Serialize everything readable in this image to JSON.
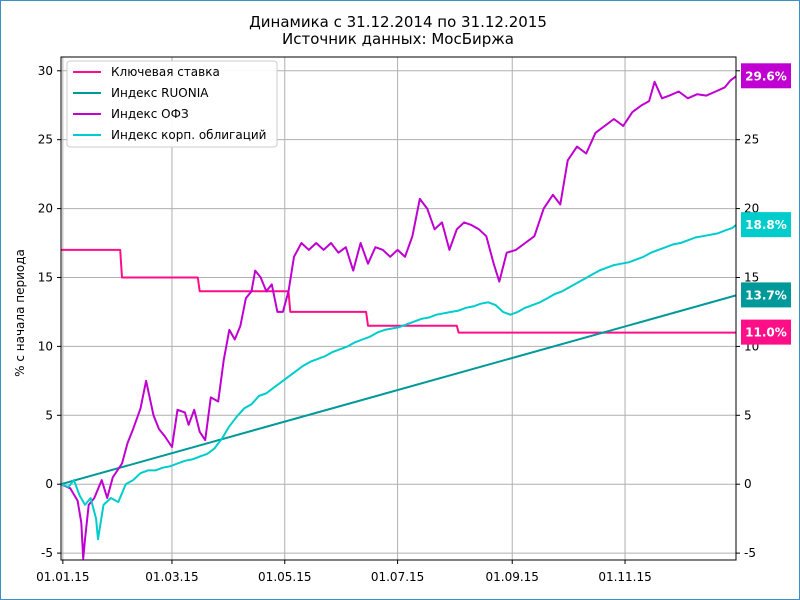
{
  "chart_data": {
    "type": "line",
    "title": "Динамика с 31.12.2014 по 31.12.2015",
    "subtitle": "Источник данных: МосБиржа",
    "ylabel": "% с начала периода",
    "xlabel": "",
    "ylim": [
      -5.5,
      31.0
    ],
    "xlim": [
      "2014-12-31",
      "2015-12-31"
    ],
    "yticks": [
      -5,
      0,
      5,
      10,
      15,
      20,
      25,
      30
    ],
    "xticks": [
      {
        "date": "2015-01-01",
        "label": "01.01.15"
      },
      {
        "date": "2015-03-01",
        "label": "01.03.15"
      },
      {
        "date": "2015-05-01",
        "label": "01.05.15"
      },
      {
        "date": "2015-07-01",
        "label": "01.07.15"
      },
      {
        "date": "2015-09-01",
        "label": "01.09.15"
      },
      {
        "date": "2015-11-01",
        "label": "01.11.15"
      }
    ],
    "grid": true,
    "legend": "top-left",
    "series": [
      {
        "name": "Ключевая ставка",
        "color": "#ff0f87",
        "end_label": "11.0%",
        "points": [
          [
            "2014-12-31",
            17.0
          ],
          [
            "2015-02-01",
            17.0
          ],
          [
            "2015-02-02",
            15.0
          ],
          [
            "2015-03-15",
            15.0
          ],
          [
            "2015-03-16",
            14.0
          ],
          [
            "2015-05-03",
            14.0
          ],
          [
            "2015-05-04",
            12.5
          ],
          [
            "2015-06-14",
            12.5
          ],
          [
            "2015-06-15",
            11.5
          ],
          [
            "2015-08-02",
            11.5
          ],
          [
            "2015-08-03",
            11.0
          ],
          [
            "2015-12-31",
            11.0
          ]
        ]
      },
      {
        "name": "Индекс RUONIA",
        "color": "#009999",
        "end_label": "13.7%",
        "points": [
          [
            "2014-12-31",
            0.0
          ],
          [
            "2015-12-31",
            13.7
          ]
        ]
      },
      {
        "name": "Индекс ОФЗ",
        "color": "#c000d0",
        "end_label": "29.6%",
        "points": [
          [
            "2014-12-31",
            0.0
          ],
          [
            "2015-01-05",
            -0.3
          ],
          [
            "2015-01-09",
            -1.2
          ],
          [
            "2015-01-11",
            -2.8
          ],
          [
            "2015-01-12",
            -5.4
          ],
          [
            "2015-01-13",
            -4.0
          ],
          [
            "2015-01-15",
            -1.5
          ],
          [
            "2015-01-18",
            -1.0
          ],
          [
            "2015-01-22",
            0.3
          ],
          [
            "2015-01-25",
            -1.0
          ],
          [
            "2015-01-28",
            0.5
          ],
          [
            "2015-02-02",
            1.5
          ],
          [
            "2015-02-05",
            3.0
          ],
          [
            "2015-02-08",
            4.0
          ],
          [
            "2015-02-12",
            5.5
          ],
          [
            "2015-02-15",
            7.5
          ],
          [
            "2015-02-19",
            5.0
          ],
          [
            "2015-02-22",
            4.0
          ],
          [
            "2015-02-25",
            3.5
          ],
          [
            "2015-03-01",
            2.7
          ],
          [
            "2015-03-04",
            5.4
          ],
          [
            "2015-03-08",
            5.2
          ],
          [
            "2015-03-10",
            4.3
          ],
          [
            "2015-03-13",
            5.4
          ],
          [
            "2015-03-16",
            3.8
          ],
          [
            "2015-03-19",
            3.2
          ],
          [
            "2015-03-22",
            6.3
          ],
          [
            "2015-03-26",
            6.0
          ],
          [
            "2015-03-29",
            9.0
          ],
          [
            "2015-04-01",
            11.2
          ],
          [
            "2015-04-04",
            10.5
          ],
          [
            "2015-04-07",
            11.5
          ],
          [
            "2015-04-10",
            13.5
          ],
          [
            "2015-04-13",
            14.0
          ],
          [
            "2015-04-15",
            15.5
          ],
          [
            "2015-04-18",
            15.0
          ],
          [
            "2015-04-21",
            14.0
          ],
          [
            "2015-04-24",
            14.5
          ],
          [
            "2015-04-27",
            12.5
          ],
          [
            "2015-04-30",
            12.5
          ],
          [
            "2015-05-03",
            14.0
          ],
          [
            "2015-05-06",
            16.5
          ],
          [
            "2015-05-10",
            17.5
          ],
          [
            "2015-05-14",
            17.0
          ],
          [
            "2015-05-18",
            17.5
          ],
          [
            "2015-05-22",
            17.0
          ],
          [
            "2015-05-26",
            17.5
          ],
          [
            "2015-05-30",
            16.8
          ],
          [
            "2015-06-03",
            17.2
          ],
          [
            "2015-06-07",
            15.5
          ],
          [
            "2015-06-11",
            17.5
          ],
          [
            "2015-06-15",
            16.0
          ],
          [
            "2015-06-19",
            17.2
          ],
          [
            "2015-06-23",
            17.0
          ],
          [
            "2015-06-27",
            16.5
          ],
          [
            "2015-07-01",
            17.0
          ],
          [
            "2015-07-05",
            16.5
          ],
          [
            "2015-07-09",
            18.0
          ],
          [
            "2015-07-13",
            20.7
          ],
          [
            "2015-07-17",
            20.0
          ],
          [
            "2015-07-21",
            18.5
          ],
          [
            "2015-07-25",
            19.0
          ],
          [
            "2015-07-29",
            17.0
          ],
          [
            "2015-08-02",
            18.5
          ],
          [
            "2015-08-06",
            19.0
          ],
          [
            "2015-08-10",
            18.8
          ],
          [
            "2015-08-14",
            18.5
          ],
          [
            "2015-08-18",
            18.0
          ],
          [
            "2015-08-22",
            16.0
          ],
          [
            "2015-08-25",
            14.7
          ],
          [
            "2015-08-29",
            16.8
          ],
          [
            "2015-09-03",
            17.0
          ],
          [
            "2015-09-08",
            17.5
          ],
          [
            "2015-09-13",
            18.0
          ],
          [
            "2015-09-18",
            20.0
          ],
          [
            "2015-09-23",
            21.0
          ],
          [
            "2015-09-27",
            20.3
          ],
          [
            "2015-10-01",
            23.5
          ],
          [
            "2015-10-06",
            24.5
          ],
          [
            "2015-10-11",
            24.0
          ],
          [
            "2015-10-16",
            25.5
          ],
          [
            "2015-10-21",
            26.0
          ],
          [
            "2015-10-26",
            26.5
          ],
          [
            "2015-10-31",
            26.0
          ],
          [
            "2015-11-05",
            27.0
          ],
          [
            "2015-11-10",
            27.5
          ],
          [
            "2015-11-14",
            27.8
          ],
          [
            "2015-11-17",
            29.2
          ],
          [
            "2015-11-21",
            28.0
          ],
          [
            "2015-11-25",
            28.2
          ],
          [
            "2015-11-30",
            28.5
          ],
          [
            "2015-12-05",
            28.0
          ],
          [
            "2015-12-10",
            28.3
          ],
          [
            "2015-12-15",
            28.2
          ],
          [
            "2015-12-20",
            28.5
          ],
          [
            "2015-12-25",
            28.8
          ],
          [
            "2015-12-28",
            29.3
          ],
          [
            "2015-12-31",
            29.6
          ]
        ]
      },
      {
        "name": "Индекс корп. облигаций",
        "color": "#00cccc",
        "end_label": "18.8%",
        "points": [
          [
            "2014-12-31",
            0.0
          ],
          [
            "2015-01-04",
            -0.2
          ],
          [
            "2015-01-07",
            0.3
          ],
          [
            "2015-01-10",
            -0.8
          ],
          [
            "2015-01-13",
            -1.5
          ],
          [
            "2015-01-16",
            -1.0
          ],
          [
            "2015-01-19",
            -2.5
          ],
          [
            "2015-01-20",
            -4.0
          ],
          [
            "2015-01-23",
            -1.5
          ],
          [
            "2015-01-27",
            -1.0
          ],
          [
            "2015-01-31",
            -1.3
          ],
          [
            "2015-02-04",
            0.0
          ],
          [
            "2015-02-08",
            0.3
          ],
          [
            "2015-02-12",
            0.8
          ],
          [
            "2015-02-16",
            1.0
          ],
          [
            "2015-02-20",
            1.0
          ],
          [
            "2015-02-24",
            1.2
          ],
          [
            "2015-02-28",
            1.3
          ],
          [
            "2015-03-04",
            1.5
          ],
          [
            "2015-03-08",
            1.7
          ],
          [
            "2015-03-12",
            1.8
          ],
          [
            "2015-03-16",
            2.0
          ],
          [
            "2015-03-20",
            2.2
          ],
          [
            "2015-03-24",
            2.6
          ],
          [
            "2015-03-28",
            3.3
          ],
          [
            "2015-04-01",
            4.2
          ],
          [
            "2015-04-05",
            4.9
          ],
          [
            "2015-04-09",
            5.5
          ],
          [
            "2015-04-13",
            5.8
          ],
          [
            "2015-04-17",
            6.4
          ],
          [
            "2015-04-21",
            6.6
          ],
          [
            "2015-04-25",
            7.0
          ],
          [
            "2015-04-29",
            7.4
          ],
          [
            "2015-05-03",
            7.8
          ],
          [
            "2015-05-07",
            8.2
          ],
          [
            "2015-05-11",
            8.6
          ],
          [
            "2015-05-15",
            8.9
          ],
          [
            "2015-05-19",
            9.1
          ],
          [
            "2015-05-23",
            9.3
          ],
          [
            "2015-05-27",
            9.6
          ],
          [
            "2015-05-31",
            9.8
          ],
          [
            "2015-06-04",
            10.0
          ],
          [
            "2015-06-08",
            10.3
          ],
          [
            "2015-06-12",
            10.5
          ],
          [
            "2015-06-16",
            10.7
          ],
          [
            "2015-06-20",
            11.0
          ],
          [
            "2015-06-24",
            11.2
          ],
          [
            "2015-06-28",
            11.3
          ],
          [
            "2015-07-02",
            11.4
          ],
          [
            "2015-07-06",
            11.6
          ],
          [
            "2015-07-10",
            11.8
          ],
          [
            "2015-07-14",
            12.0
          ],
          [
            "2015-07-18",
            12.1
          ],
          [
            "2015-07-22",
            12.3
          ],
          [
            "2015-07-26",
            12.4
          ],
          [
            "2015-07-30",
            12.5
          ],
          [
            "2015-08-03",
            12.6
          ],
          [
            "2015-08-07",
            12.8
          ],
          [
            "2015-08-11",
            12.9
          ],
          [
            "2015-08-15",
            13.1
          ],
          [
            "2015-08-19",
            13.2
          ],
          [
            "2015-08-23",
            13.0
          ],
          [
            "2015-08-27",
            12.5
          ],
          [
            "2015-08-31",
            12.3
          ],
          [
            "2015-09-04",
            12.5
          ],
          [
            "2015-09-08",
            12.8
          ],
          [
            "2015-09-12",
            13.0
          ],
          [
            "2015-09-16",
            13.2
          ],
          [
            "2015-09-20",
            13.5
          ],
          [
            "2015-09-24",
            13.8
          ],
          [
            "2015-09-28",
            14.0
          ],
          [
            "2015-10-02",
            14.3
          ],
          [
            "2015-10-06",
            14.6
          ],
          [
            "2015-10-10",
            14.9
          ],
          [
            "2015-10-14",
            15.2
          ],
          [
            "2015-10-18",
            15.5
          ],
          [
            "2015-10-22",
            15.7
          ],
          [
            "2015-10-26",
            15.9
          ],
          [
            "2015-10-30",
            16.0
          ],
          [
            "2015-11-03",
            16.1
          ],
          [
            "2015-11-07",
            16.3
          ],
          [
            "2015-11-11",
            16.5
          ],
          [
            "2015-11-15",
            16.8
          ],
          [
            "2015-11-19",
            17.0
          ],
          [
            "2015-11-23",
            17.2
          ],
          [
            "2015-11-27",
            17.4
          ],
          [
            "2015-12-01",
            17.5
          ],
          [
            "2015-12-05",
            17.7
          ],
          [
            "2015-12-09",
            17.9
          ],
          [
            "2015-12-13",
            18.0
          ],
          [
            "2015-12-17",
            18.1
          ],
          [
            "2015-12-21",
            18.2
          ],
          [
            "2015-12-25",
            18.4
          ],
          [
            "2015-12-29",
            18.6
          ],
          [
            "2015-12-31",
            18.8
          ]
        ]
      }
    ]
  }
}
